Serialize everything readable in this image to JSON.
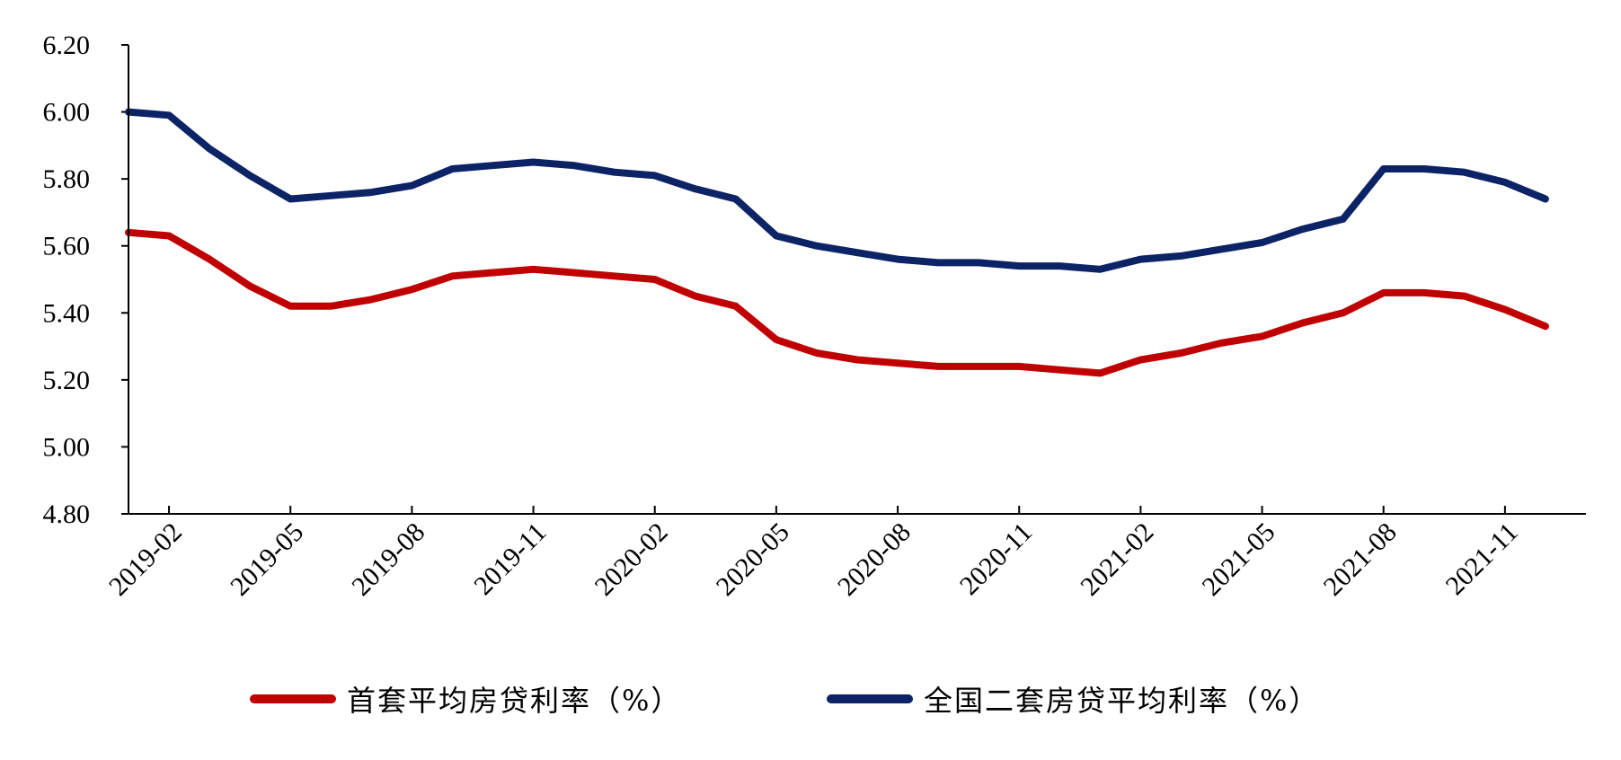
{
  "chart_data": {
    "type": "line",
    "title": "",
    "xlabel": "",
    "ylabel": "",
    "ylim": [
      4.8,
      6.2
    ],
    "yticks": [
      "4.80",
      "5.00",
      "5.20",
      "5.40",
      "5.60",
      "5.80",
      "6.00",
      "6.20"
    ],
    "xtick_labels": [
      "2019-02",
      "2019-05",
      "2019-08",
      "2019-11",
      "2020-02",
      "2020-05",
      "2020-08",
      "2020-11",
      "2021-02",
      "2021-05",
      "2021-08",
      "2021-11"
    ],
    "x": [
      "2019-01",
      "2019-02",
      "2019-03",
      "2019-04",
      "2019-05",
      "2019-06",
      "2019-07",
      "2019-08",
      "2019-09",
      "2019-10",
      "2019-11",
      "2019-12",
      "2020-01",
      "2020-02",
      "2020-03",
      "2020-04",
      "2020-05",
      "2020-06",
      "2020-07",
      "2020-08",
      "2020-09",
      "2020-10",
      "2020-11",
      "2020-12",
      "2021-01",
      "2021-02",
      "2021-03",
      "2021-04",
      "2021-05",
      "2021-06",
      "2021-07",
      "2021-08",
      "2021-09",
      "2021-10",
      "2021-11",
      "2021-12"
    ],
    "legend_position": "bottom",
    "grid": false,
    "series": [
      {
        "name": "首套平均房贷利率（%）",
        "color": "#C00000",
        "values": [
          5.64,
          5.63,
          5.56,
          5.48,
          5.42,
          5.42,
          5.44,
          5.47,
          5.51,
          5.52,
          5.53,
          5.52,
          5.51,
          5.5,
          5.45,
          5.42,
          5.32,
          5.28,
          5.26,
          5.25,
          5.24,
          5.24,
          5.24,
          5.23,
          5.22,
          5.26,
          5.28,
          5.31,
          5.33,
          5.37,
          5.4,
          5.46,
          5.46,
          5.45,
          5.41,
          5.36
        ]
      },
      {
        "name": "全国二套房贷平均利率（%）",
        "color": "#0C2366",
        "values": [
          6.0,
          5.99,
          5.89,
          5.81,
          5.74,
          5.75,
          5.76,
          5.78,
          5.83,
          5.84,
          5.85,
          5.84,
          5.82,
          5.81,
          5.77,
          5.74,
          5.63,
          5.6,
          5.58,
          5.56,
          5.55,
          5.55,
          5.54,
          5.54,
          5.53,
          5.56,
          5.57,
          5.59,
          5.61,
          5.65,
          5.68,
          5.83,
          5.83,
          5.82,
          5.79,
          5.74
        ]
      }
    ]
  }
}
